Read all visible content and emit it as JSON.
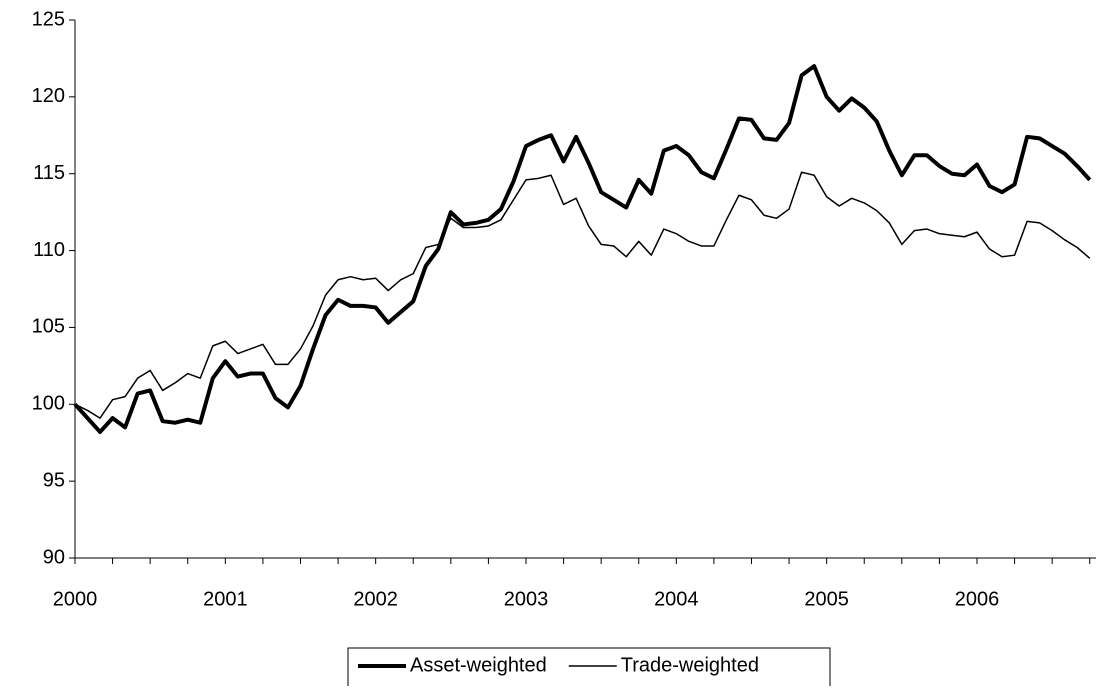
{
  "chart_data": {
    "type": "line",
    "categories": [
      "2000",
      null,
      null,
      null,
      null,
      null,
      null,
      null,
      null,
      null,
      null,
      null,
      "2001",
      null,
      null,
      null,
      null,
      null,
      null,
      null,
      null,
      null,
      null,
      null,
      "2002",
      null,
      null,
      null,
      null,
      null,
      null,
      null,
      null,
      null,
      null,
      null,
      "2003",
      null,
      null,
      null,
      null,
      null,
      null,
      null,
      null,
      null,
      null,
      null,
      "2004",
      null,
      null,
      null,
      null,
      null,
      null,
      null,
      null,
      null,
      null,
      null,
      "2005",
      null,
      null,
      null,
      null,
      null,
      null,
      null,
      null,
      null,
      null,
      null,
      "2006",
      null,
      null,
      null,
      null,
      null,
      null,
      null,
      null,
      null
    ],
    "series": [
      {
        "name": "Asset-weighted",
        "color": "#000000",
        "line_width": 4,
        "values": [
          100,
          99.1,
          98.2,
          99.1,
          98.5,
          100.7,
          100.9,
          98.9,
          98.8,
          99.0,
          98.8,
          101.7,
          102.8,
          101.8,
          102.0,
          102.0,
          100.4,
          99.8,
          101.2,
          103.6,
          105.8,
          106.8,
          106.4,
          106.4,
          106.3,
          105.3,
          106.0,
          106.7,
          109.0,
          110.1,
          112.5,
          111.7,
          111.8,
          112.0,
          112.7,
          114.5,
          116.8,
          117.2,
          117.5,
          115.8,
          117.4,
          115.7,
          113.8,
          113.3,
          112.8,
          114.6,
          113.7,
          116.5,
          116.8,
          116.2,
          115.1,
          114.7,
          116.6,
          118.6,
          118.5,
          117.3,
          117.2,
          118.3,
          121.4,
          122.0,
          120.0,
          119.1,
          119.9,
          119.3,
          118.4,
          116.5,
          114.9,
          116.2,
          116.2,
          115.5,
          115.0,
          114.9,
          115.6,
          114.2,
          113.8,
          114.3,
          117.4,
          117.3,
          116.8,
          116.3,
          115.5,
          114.6
        ]
      },
      {
        "name": "Trade-weighted",
        "color": "#000000",
        "line_width": 1.5,
        "values": [
          100,
          99.6,
          99.1,
          100.3,
          100.5,
          101.7,
          102.2,
          100.9,
          101.4,
          102.0,
          101.7,
          103.8,
          104.1,
          103.3,
          103.6,
          103.9,
          102.6,
          102.6,
          103.6,
          105.1,
          107.1,
          108.1,
          108.3,
          108.1,
          108.2,
          107.4,
          108.1,
          108.5,
          110.2,
          110.4,
          112.1,
          111.5,
          111.5,
          111.6,
          112.0,
          113.3,
          114.6,
          114.7,
          114.9,
          113.0,
          113.4,
          111.6,
          110.4,
          110.3,
          109.6,
          110.6,
          109.7,
          111.4,
          111.1,
          110.6,
          110.3,
          110.3,
          112.0,
          113.6,
          113.3,
          112.3,
          112.1,
          112.7,
          115.1,
          114.9,
          113.5,
          112.9,
          113.4,
          113.1,
          112.6,
          111.8,
          110.4,
          111.3,
          111.4,
          111.1,
          111.0,
          110.9,
          111.2,
          110.1,
          109.6,
          109.7,
          111.9,
          111.8,
          111.3,
          110.7,
          110.2,
          109.5
        ]
      }
    ],
    "ylim": [
      90,
      125
    ],
    "yticks": [
      90,
      95,
      100,
      105,
      110,
      115,
      120,
      125
    ],
    "grid": false,
    "legend": "bottom"
  }
}
